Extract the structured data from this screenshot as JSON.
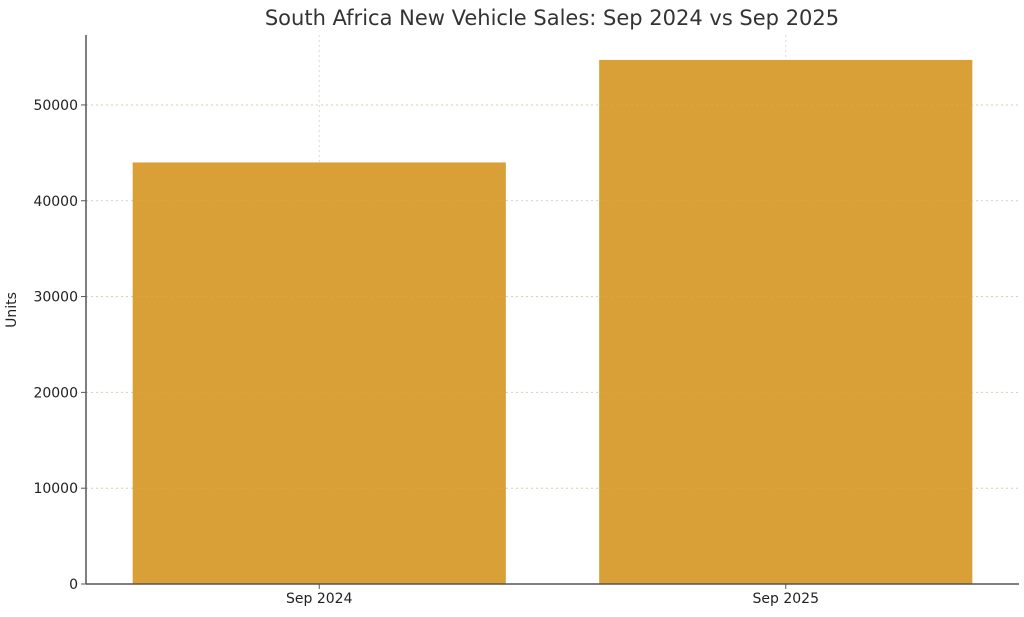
{
  "chart_data": {
    "type": "bar",
    "title": "South Africa New Vehicle Sales: Sep 2024 vs Sep 2025",
    "xlabel": "",
    "ylabel": "Units",
    "categories": [
      "Sep 2024",
      "Sep 2025"
    ],
    "values": [
      44000,
      54700
    ],
    "ylim": [
      0,
      57300
    ],
    "yticks": [
      0,
      10000,
      20000,
      30000,
      40000,
      50000
    ],
    "grid": true,
    "bar_color": "#DAA038"
  }
}
